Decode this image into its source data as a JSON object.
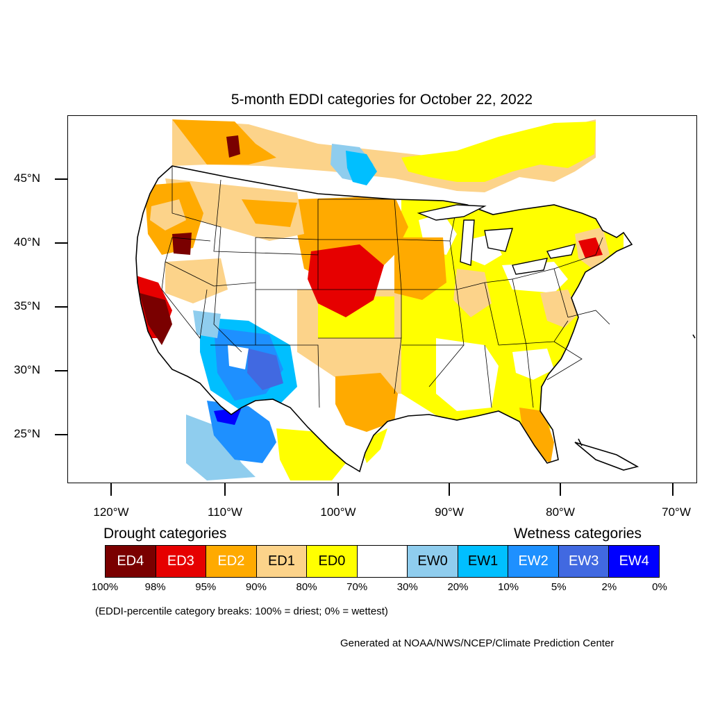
{
  "title": "5-month EDDI categories for October 22, 2022",
  "latitude_labels": [
    "45°N",
    "40°N",
    "35°N",
    "30°N",
    "25°N"
  ],
  "longitude_labels": [
    "120°W",
    "110°W",
    "100°W",
    "90°W",
    "80°W",
    "70°W"
  ],
  "legend": {
    "drought_heading": "Drought categories",
    "wetness_heading": "Wetness categories",
    "categories": [
      {
        "label": "ED4",
        "color": "#7a0000",
        "text_color": "#ffffff"
      },
      {
        "label": "ED3",
        "color": "#e60000",
        "text_color": "#ffffff"
      },
      {
        "label": "ED2",
        "color": "#ffaa00",
        "text_color": "#ffffff"
      },
      {
        "label": "ED1",
        "color": "#fcd38a",
        "text_color": "#000000"
      },
      {
        "label": "ED0",
        "color": "#ffff00",
        "text_color": "#000000"
      },
      {
        "label": "",
        "color": "#ffffff",
        "text_color": "#000000"
      },
      {
        "label": "EW0",
        "color": "#8fcdee",
        "text_color": "#000000"
      },
      {
        "label": "EW1",
        "color": "#00bfff",
        "text_color": "#000000"
      },
      {
        "label": "EW2",
        "color": "#1e90ff",
        "text_color": "#ffffff"
      },
      {
        "label": "EW3",
        "color": "#4169e1",
        "text_color": "#ffffff"
      },
      {
        "label": "EW4",
        "color": "#0000ff",
        "text_color": "#ffffff"
      }
    ],
    "breaks": [
      "100%",
      "98%",
      "95%",
      "90%",
      "80%",
      "70%",
      "30%",
      "20%",
      "10%",
      "5%",
      "2%",
      "0%"
    ],
    "breaks_note": "(EDDI-percentile category breaks: 100% = driest; 0% = wettest)"
  },
  "credit": "Generated at NOAA/NWS/NCEP/Climate Prediction Center"
}
